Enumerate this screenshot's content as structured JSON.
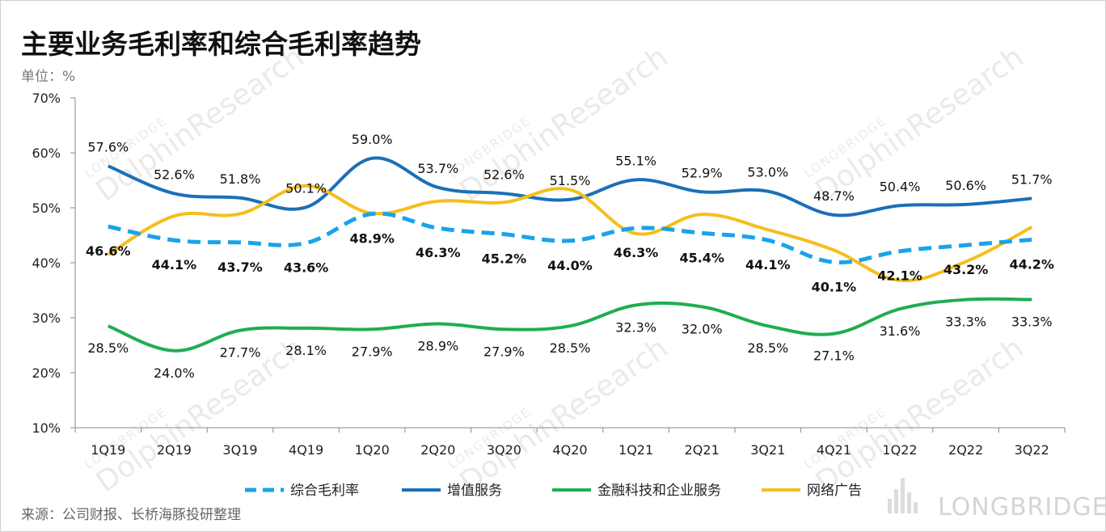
{
  "title": "主要业务毛利率和综合毛利率趋势",
  "unit": "单位：%",
  "source": "来源：公司财报、长桥海豚投研整理",
  "brand": "LONGBRIDGE",
  "watermark": {
    "top": "LONGBRIDGE",
    "main": "DolphinResearch"
  },
  "chart_data": {
    "type": "line",
    "title": "主要业务毛利率和综合毛利率趋势",
    "ylabel": "单位：%",
    "ylim": [
      10,
      70
    ],
    "yticks": [
      "10%",
      "20%",
      "30%",
      "40%",
      "50%",
      "60%",
      "70%"
    ],
    "yticks_values": [
      10,
      20,
      30,
      40,
      50,
      60,
      70
    ],
    "categories": [
      "1Q19",
      "2Q19",
      "3Q19",
      "4Q19",
      "1Q20",
      "2Q20",
      "3Q20",
      "4Q20",
      "1Q21",
      "2Q21",
      "3Q21",
      "4Q21",
      "1Q22",
      "2Q22",
      "3Q22"
    ],
    "legend_position": "bottom",
    "series": [
      {
        "name": "综合毛利率",
        "color": "#1aa3e8",
        "dashed": true,
        "bold_labels": true,
        "values": [
          46.6,
          44.1,
          43.7,
          43.6,
          48.9,
          46.3,
          45.2,
          44.0,
          46.3,
          45.4,
          44.1,
          40.1,
          42.1,
          43.2,
          44.2
        ],
        "labels": [
          "46.6%",
          "44.1%",
          "43.7%",
          "43.6%",
          "48.9%",
          "46.3%",
          "45.2%",
          "44.0%",
          "46.3%",
          "45.4%",
          "44.1%",
          "40.1%",
          "42.1%",
          "43.2%",
          "44.2%"
        ]
      },
      {
        "name": "增值服务",
        "color": "#1c6fb8",
        "dashed": false,
        "bold_labels": false,
        "values": [
          57.6,
          52.6,
          51.8,
          50.1,
          59.0,
          53.7,
          52.6,
          51.5,
          55.1,
          52.9,
          53.0,
          48.7,
          50.4,
          50.6,
          51.7
        ],
        "labels": [
          "57.6%",
          "52.6%",
          "51.8%",
          "50.1%",
          "59.0%",
          "53.7%",
          "52.6%",
          "51.5%",
          "55.1%",
          "52.9%",
          "53.0%",
          "48.7%",
          "50.4%",
          "50.6%",
          "51.7%"
        ]
      },
      {
        "name": "金融科技和企业服务",
        "color": "#1fae4f",
        "dashed": false,
        "bold_labels": false,
        "values": [
          28.5,
          24.0,
          27.7,
          28.1,
          27.9,
          28.9,
          27.9,
          28.5,
          32.3,
          32.0,
          28.5,
          27.1,
          31.6,
          33.3,
          33.3
        ],
        "labels": [
          "28.5%",
          "24.0%",
          "27.7%",
          "28.1%",
          "27.9%",
          "28.9%",
          "27.9%",
          "28.5%",
          "32.3%",
          "32.0%",
          "28.5%",
          "27.1%",
          "31.6%",
          "33.3%",
          "33.3%"
        ]
      },
      {
        "name": "网络广告",
        "color": "#f5be1c",
        "dashed": false,
        "bold_labels": false,
        "values": [
          41.5,
          48.5,
          48.9,
          54.0,
          49.0,
          51.2,
          51.0,
          53.3,
          45.3,
          48.8,
          46.0,
          42.3,
          36.8,
          40.2,
          46.5
        ],
        "labels": []
      }
    ]
  }
}
